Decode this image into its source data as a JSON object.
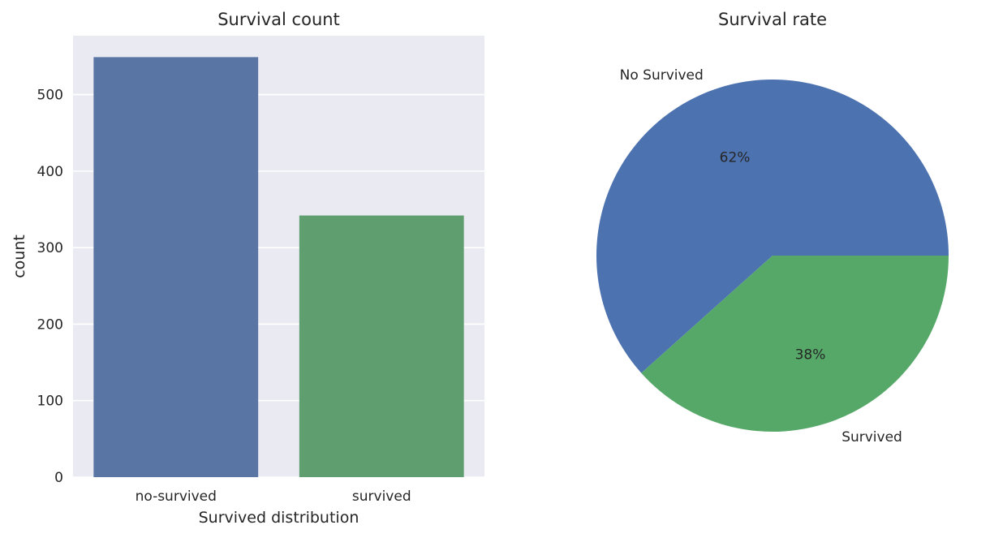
{
  "chart_data": [
    {
      "type": "bar",
      "title": "Survival count",
      "xlabel": "Survived distribution",
      "ylabel": "count",
      "categories": [
        "no-survived",
        "survived"
      ],
      "values": [
        549,
        342
      ],
      "ylim": [
        0,
        577
      ],
      "yticks": [
        0,
        100,
        200,
        300,
        400,
        500
      ],
      "grid": true,
      "colors": [
        "#5975a4",
        "#5f9e6e"
      ],
      "background": "#eaeaf2"
    },
    {
      "type": "pie",
      "title": "Survival rate",
      "labels": [
        "No Survived",
        "Survived"
      ],
      "values": [
        549,
        342
      ],
      "pct_labels": [
        "62%",
        "38%"
      ],
      "colors": [
        "#4c72b0",
        "#55a868"
      ],
      "start_angle_deg": 0,
      "direction": "counterclockwise"
    }
  ]
}
